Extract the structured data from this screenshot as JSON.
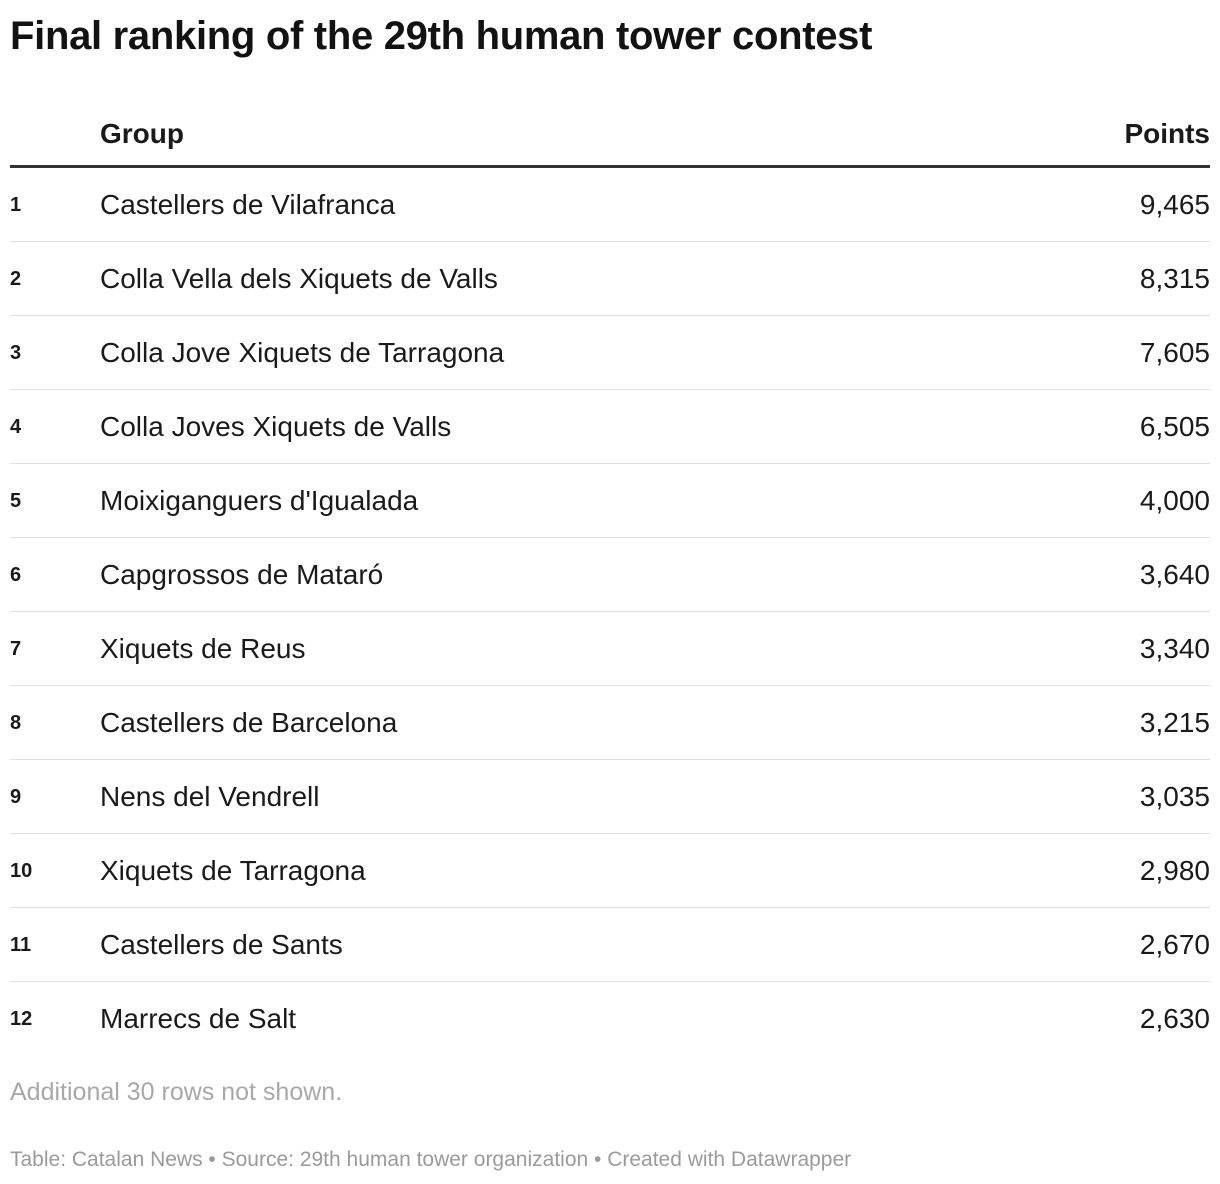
{
  "chart_data": {
    "type": "table",
    "title": "Final ranking of the 29th human tower contest",
    "columns": [
      "",
      "Group",
      "Points"
    ],
    "rows": [
      {
        "rank": "1",
        "group": "Castellers de Vilafranca",
        "points": "9,465"
      },
      {
        "rank": "2",
        "group": "Colla Vella dels Xiquets de Valls",
        "points": "8,315"
      },
      {
        "rank": "3",
        "group": "Colla Jove Xiquets de Tarragona",
        "points": "7,605"
      },
      {
        "rank": "4",
        "group": "Colla Joves Xiquets de Valls",
        "points": "6,505"
      },
      {
        "rank": "5",
        "group": "Moixiganguers d'Igualada",
        "points": "4,000"
      },
      {
        "rank": "6",
        "group": "Capgrossos de Mataró",
        "points": "3,640"
      },
      {
        "rank": "7",
        "group": "Xiquets de Reus",
        "points": "3,340"
      },
      {
        "rank": "8",
        "group": "Castellers de Barcelona",
        "points": "3,215"
      },
      {
        "rank": "9",
        "group": "Nens del Vendrell",
        "points": "3,035"
      },
      {
        "rank": "10",
        "group": "Xiquets de Tarragona",
        "points": "2,980"
      },
      {
        "rank": "11",
        "group": "Castellers de Sants",
        "points": "2,670"
      },
      {
        "rank": "12",
        "group": "Marrecs de Salt",
        "points": "2,630"
      }
    ],
    "note": "Additional 30 rows not shown.",
    "footer": "Table: Catalan News • Source: 29th human tower organization • Created with Datawrapper"
  }
}
